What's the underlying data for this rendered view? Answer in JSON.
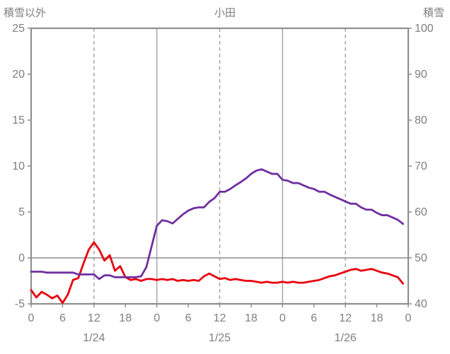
{
  "chart_data": {
    "type": "line",
    "title": "小田",
    "left_axis": {
      "label": "積雪以外",
      "min": -5,
      "max": 25,
      "ticks": [
        25,
        20,
        15,
        10,
        5,
        0,
        -5
      ]
    },
    "right_axis": {
      "label": "積雪",
      "min": 40,
      "max": 100,
      "ticks": [
        100,
        90,
        80,
        70,
        60,
        50,
        40
      ]
    },
    "x_axis": {
      "hours_total": 72,
      "tick_step": 6,
      "tick_labels": [
        "0",
        "6",
        "12",
        "18",
        "0",
        "6",
        "12",
        "18",
        "0",
        "6",
        "12",
        "18",
        "0"
      ],
      "day_labels": [
        "1/24",
        "1/25",
        "1/26"
      ],
      "solid_gridlines_hours": [
        24,
        48
      ],
      "dashed_gridlines_hours": [
        12,
        36,
        60
      ],
      "zero_line_left_value": 0
    },
    "series": [
      {
        "name": "red-line",
        "axis": "left",
        "color": "#e8000d",
        "values": [
          -3.5,
          -4.3,
          -3.7,
          -4.0,
          -4.4,
          -4.1,
          -4.9,
          -4.0,
          -2.4,
          -2.2,
          -0.6,
          0.9,
          1.7,
          0.9,
          -0.3,
          0.3,
          -1.4,
          -0.9,
          -2.1,
          -2.4,
          -2.3,
          -2.5,
          -2.3,
          -2.3,
          -2.4,
          -2.3,
          -2.4,
          -2.3,
          -2.5,
          -2.4,
          -2.5,
          -2.4,
          -2.5,
          -2.0,
          -1.7,
          -2.0,
          -2.3,
          -2.2,
          -2.4,
          -2.3,
          -2.4,
          -2.5,
          -2.5,
          -2.6,
          -2.7,
          -2.6,
          -2.7,
          -2.7,
          -2.6,
          -2.7,
          -2.6,
          -2.7,
          -2.7,
          -2.6,
          -2.5,
          -2.4,
          -2.2,
          -2.0,
          -1.9,
          -1.7,
          -1.5,
          -1.3,
          -1.2,
          -1.4,
          -1.3,
          -1.2,
          -1.4,
          -1.6,
          -1.7,
          -1.9,
          -2.1,
          -2.8
        ]
      },
      {
        "name": "purple-line",
        "axis": "right",
        "color": "#7030a0",
        "values": [
          47.0,
          47.0,
          47.0,
          46.8,
          46.8,
          46.8,
          46.8,
          46.8,
          46.8,
          46.4,
          46.4,
          46.4,
          46.4,
          45.4,
          46.2,
          46.2,
          45.8,
          45.8,
          45.8,
          45.8,
          45.8,
          46.0,
          48.0,
          52.5,
          57.0,
          58.2,
          58.0,
          57.5,
          58.5,
          59.5,
          60.3,
          60.8,
          61.0,
          61.0,
          62.2,
          63.0,
          64.4,
          64.4,
          65.0,
          65.8,
          66.5,
          67.3,
          68.3,
          69.0,
          69.3,
          68.8,
          68.3,
          68.3,
          67.0,
          66.8,
          66.3,
          66.3,
          65.8,
          65.3,
          65.0,
          64.4,
          64.4,
          63.8,
          63.3,
          62.8,
          62.3,
          61.8,
          61.8,
          61.0,
          60.5,
          60.5,
          59.8,
          59.3,
          59.3,
          58.8,
          58.3,
          57.4
        ]
      }
    ],
    "grid_color": "#a6a6a6",
    "frame_color": "#8f8f8f",
    "text_color": "#7f7f7f"
  }
}
